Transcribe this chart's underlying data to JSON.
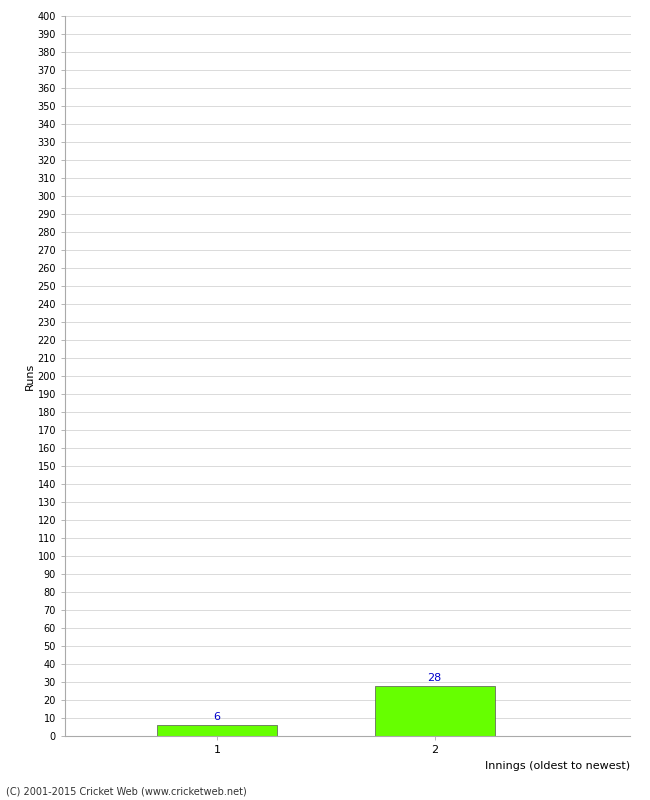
{
  "title": "",
  "xlabel": "Innings (oldest to newest)",
  "ylabel": "Runs",
  "categories": [
    1,
    2
  ],
  "values": [
    6,
    28
  ],
  "bar_color": "#66ff00",
  "bar_edgecolor": "#555555",
  "value_labels": [
    6,
    28
  ],
  "value_label_color": "#0000cc",
  "ylim": [
    0,
    400
  ],
  "background_color": "#ffffff",
  "grid_color": "#cccccc",
  "footer": "(C) 2001-2015 Cricket Web (www.cricketweb.net)"
}
